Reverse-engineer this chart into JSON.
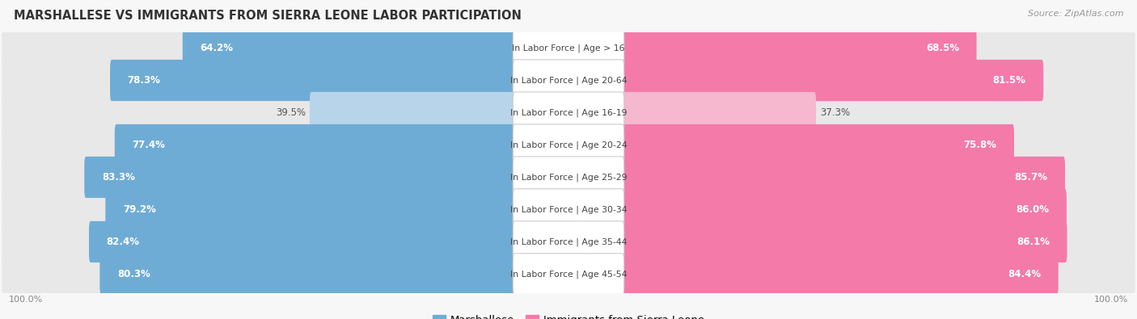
{
  "title": "MARSHALLESE VS IMMIGRANTS FROM SIERRA LEONE LABOR PARTICIPATION",
  "source": "Source: ZipAtlas.com",
  "categories": [
    "In Labor Force | Age > 16",
    "In Labor Force | Age 20-64",
    "In Labor Force | Age 16-19",
    "In Labor Force | Age 20-24",
    "In Labor Force | Age 25-29",
    "In Labor Force | Age 30-34",
    "In Labor Force | Age 35-44",
    "In Labor Force | Age 45-54"
  ],
  "marshallese_values": [
    64.2,
    78.3,
    39.5,
    77.4,
    83.3,
    79.2,
    82.4,
    80.3
  ],
  "sierraleone_values": [
    68.5,
    81.5,
    37.3,
    75.8,
    85.7,
    86.0,
    86.1,
    84.4
  ],
  "marshallese_color": "#6facd5",
  "marshallese_color_light": "#b8d4ea",
  "sierraleone_color": "#f47aaa",
  "sierraleone_color_light": "#f5b8ce",
  "row_bg_color": "#e8e8e8",
  "label_color_white": "#ffffff",
  "label_color_dark": "#555555",
  "legend_marshallese": "Marshallese",
  "legend_sierraleone": "Immigrants from Sierra Leone",
  "background_color": "#f7f7f7",
  "title_color": "#333333",
  "source_color": "#999999"
}
